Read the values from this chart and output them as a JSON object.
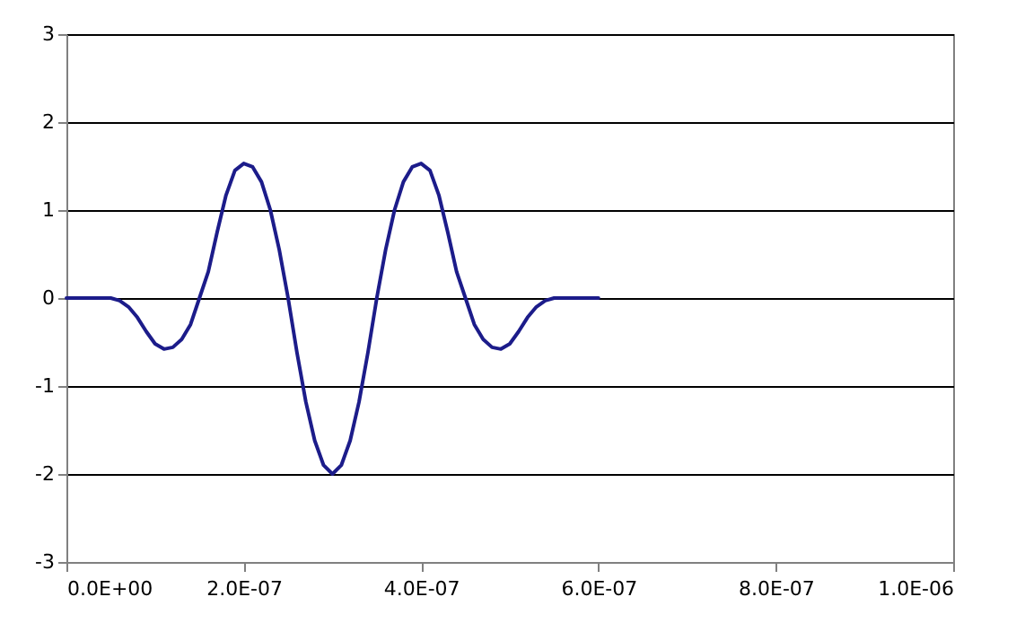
{
  "chart_data": {
    "type": "line",
    "x": [
      0,
      1e-08,
      2e-08,
      3e-08,
      4e-08,
      5e-08,
      6e-08,
      7e-08,
      8e-08,
      9e-08,
      1e-07,
      1.1e-07,
      1.2e-07,
      1.3e-07,
      1.4e-07,
      1.5e-07,
      1.6e-07,
      1.7e-07,
      1.8e-07,
      1.9e-07,
      2e-07,
      2.1e-07,
      2.2e-07,
      2.3e-07,
      2.4e-07,
      2.5e-07,
      2.6e-07,
      2.7e-07,
      2.8e-07,
      2.9e-07,
      3e-07,
      3.1e-07,
      3.2e-07,
      3.3e-07,
      3.4e-07,
      3.5e-07,
      3.6e-07,
      3.7e-07,
      3.8e-07,
      3.9e-07,
      4e-07,
      4.1e-07,
      4.2e-07,
      4.3e-07,
      4.4e-07,
      4.5e-07,
      4.6e-07,
      4.7e-07,
      4.8e-07,
      4.9e-07,
      5e-07,
      5.1e-07,
      5.2e-07,
      5.3e-07,
      5.4e-07,
      5.5e-07,
      5.6e-07,
      5.7e-07,
      5.8e-07,
      5.9e-07,
      6e-07
    ],
    "series": [
      {
        "color": "#1c1c8a",
        "values": [
          0,
          0,
          0,
          0,
          0,
          0,
          -0.03,
          -0.1,
          -0.22,
          -0.38,
          -0.52,
          -0.58,
          -0.56,
          -0.47,
          -0.3,
          0,
          0.3,
          0.75,
          1.17,
          1.45,
          1.53,
          1.49,
          1.32,
          1.0,
          0.55,
          0,
          -0.62,
          -1.18,
          -1.62,
          -1.9,
          -2,
          -1.9,
          -1.62,
          -1.18,
          -0.62,
          0,
          0.55,
          1.0,
          1.32,
          1.49,
          1.53,
          1.45,
          1.17,
          0.75,
          0.3,
          0,
          -0.3,
          -0.47,
          -0.56,
          -0.58,
          -0.52,
          -0.38,
          -0.22,
          -0.1,
          -0.03,
          0,
          0,
          0,
          0,
          0,
          0
        ]
      }
    ],
    "xlim": [
      0,
      1e-06
    ],
    "xticks": [
      {
        "value": 0,
        "label": "0.0E+00"
      },
      {
        "value": 2e-07,
        "label": "2.0E-07"
      },
      {
        "value": 4e-07,
        "label": "4.0E-07"
      },
      {
        "value": 6e-07,
        "label": "6.0E-07"
      },
      {
        "value": 8e-07,
        "label": "8.0E-07"
      },
      {
        "value": 1e-06,
        "label": "1.0E-06"
      }
    ],
    "ylim": [
      -3,
      3
    ],
    "yticks": [
      -3,
      -2,
      -1,
      0,
      1,
      2,
      3
    ],
    "grid": "y",
    "marker": "none",
    "line_style": "solid"
  }
}
